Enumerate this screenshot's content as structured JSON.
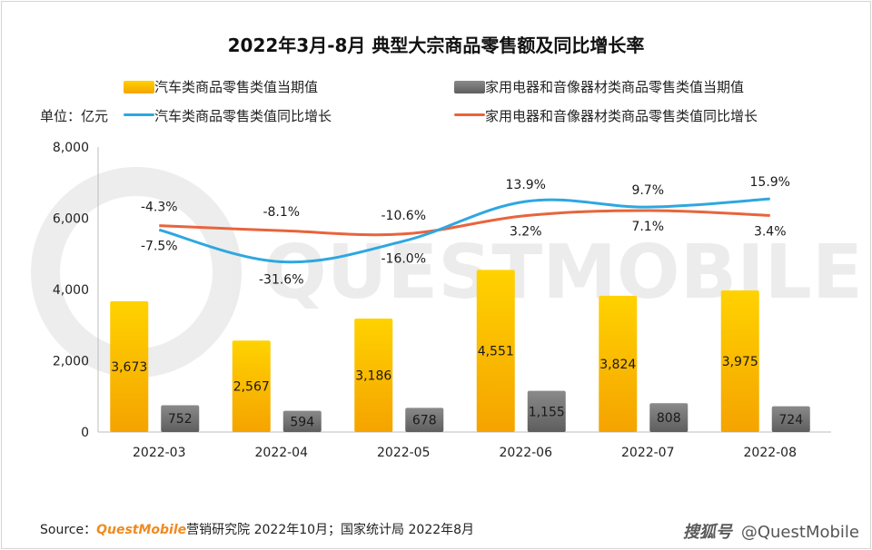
{
  "title": "2022年3月-8月 典型大宗商品零售额及同比增长率",
  "unit_label": "单位：亿元",
  "legend": {
    "bar1": "汽车类商品零售类值当期值",
    "bar2": "家用电器和音像器材类商品零售类值当期值",
    "line1": "汽车类商品零售类值同比增长",
    "line2": "家用电器和音像器材类商品零售类值同比增长"
  },
  "colors": {
    "bar1": "#f7b500",
    "bar2": "#6f6f6f",
    "line1": "#2ea7e0",
    "line2": "#e8643c"
  },
  "footer": {
    "prefix": "Source：",
    "brand": "QuestMobile",
    "rest": "营销研究院 2022年10月；国家统计局 2022年8月"
  },
  "watermark": {
    "a": "搜狐号",
    "b": "@QuestMobile"
  },
  "background_mark": "QUESTMOBILE",
  "chart_data": {
    "type": "bar",
    "title": "2022年3月-8月 典型大宗商品零售额及同比增长率",
    "ylabel": "单位：亿元",
    "categories": [
      "2022-03",
      "2022-04",
      "2022-05",
      "2022-06",
      "2022-07",
      "2022-08"
    ],
    "ylim": [
      0,
      8000
    ],
    "yticks": [
      0,
      2000,
      4000,
      6000,
      8000
    ],
    "ytick_labels": [
      "0",
      "2,000",
      "4,000",
      "6,000",
      "8,000"
    ],
    "series": [
      {
        "name": "汽车类商品零售类值当期值",
        "kind": "bar",
        "values": [
          3673,
          2567,
          3186,
          4551,
          3824,
          3975
        ],
        "labels": [
          "3,673",
          "2,567",
          "3,186",
          "4,551",
          "3,824",
          "3,975"
        ]
      },
      {
        "name": "家用电器和音像器材类商品零售类值当期值",
        "kind": "bar",
        "values": [
          752,
          594,
          678,
          1155,
          808,
          724
        ],
        "labels": [
          "752",
          "594",
          "678",
          "1,155",
          "808",
          "724"
        ]
      },
      {
        "name": "汽车类商品零售类值同比增长",
        "kind": "line",
        "unit": "%",
        "values": [
          -7.5,
          -31.6,
          -16.0,
          13.9,
          9.7,
          15.9
        ],
        "labels": [
          "-7.5%",
          "-31.6%",
          "-16.0%",
          "13.9%",
          "9.7%",
          "15.9%"
        ]
      },
      {
        "name": "家用电器和音像器材类商品零售类值同比增长",
        "kind": "line",
        "unit": "%",
        "values": [
          -4.3,
          -8.1,
          -10.6,
          3.2,
          7.1,
          3.4
        ],
        "labels": [
          "-4.3%",
          "-8.1%",
          "-10.6%",
          "3.2%",
          "7.1%",
          "3.4%"
        ]
      }
    ]
  }
}
